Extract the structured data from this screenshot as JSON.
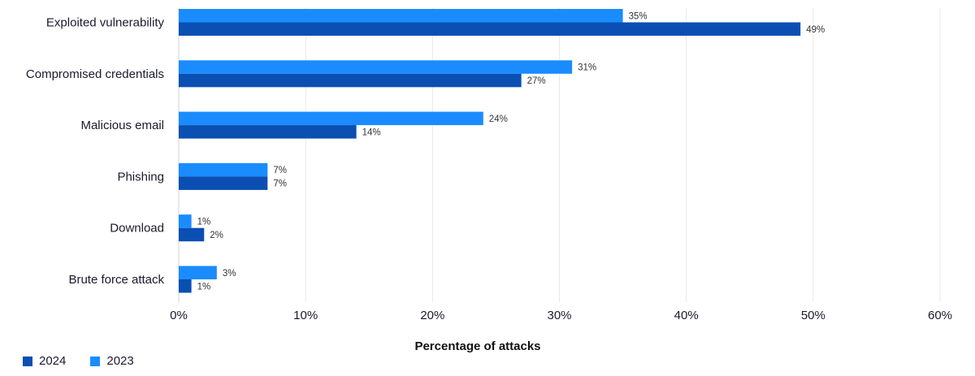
{
  "chart_data": {
    "type": "bar",
    "orientation": "horizontal",
    "categories": [
      "Exploited vulnerability",
      "Compromised credentials",
      "Malicious email",
      "Phishing",
      "Download",
      "Brute force attack"
    ],
    "series": [
      {
        "name": "2023",
        "values": [
          35,
          31,
          24,
          7,
          1,
          3
        ],
        "color": "#1a8cff",
        "labels": [
          "35%",
          "31%",
          "24%",
          "7%",
          "1%",
          "3%"
        ]
      },
      {
        "name": "2024",
        "values": [
          49,
          27,
          14,
          7,
          2,
          1
        ],
        "color": "#0b4fb3",
        "labels": [
          "49%",
          "27%",
          "14%",
          "7%",
          "2%",
          "1%"
        ]
      }
    ],
    "xlabel": "Percentage of attacks",
    "xlim": [
      0,
      60
    ],
    "xticks": [
      0,
      10,
      20,
      30,
      40,
      50,
      60
    ],
    "xtick_labels": [
      "0%",
      "10%",
      "20%",
      "30%",
      "40%",
      "50%",
      "60%"
    ],
    "grid": "vertical",
    "legend_placement": "bottom-left"
  },
  "legend": [
    {
      "label": "2024",
      "color": "#0b4fb3"
    },
    {
      "label": "2023",
      "color": "#1a8cff"
    }
  ]
}
